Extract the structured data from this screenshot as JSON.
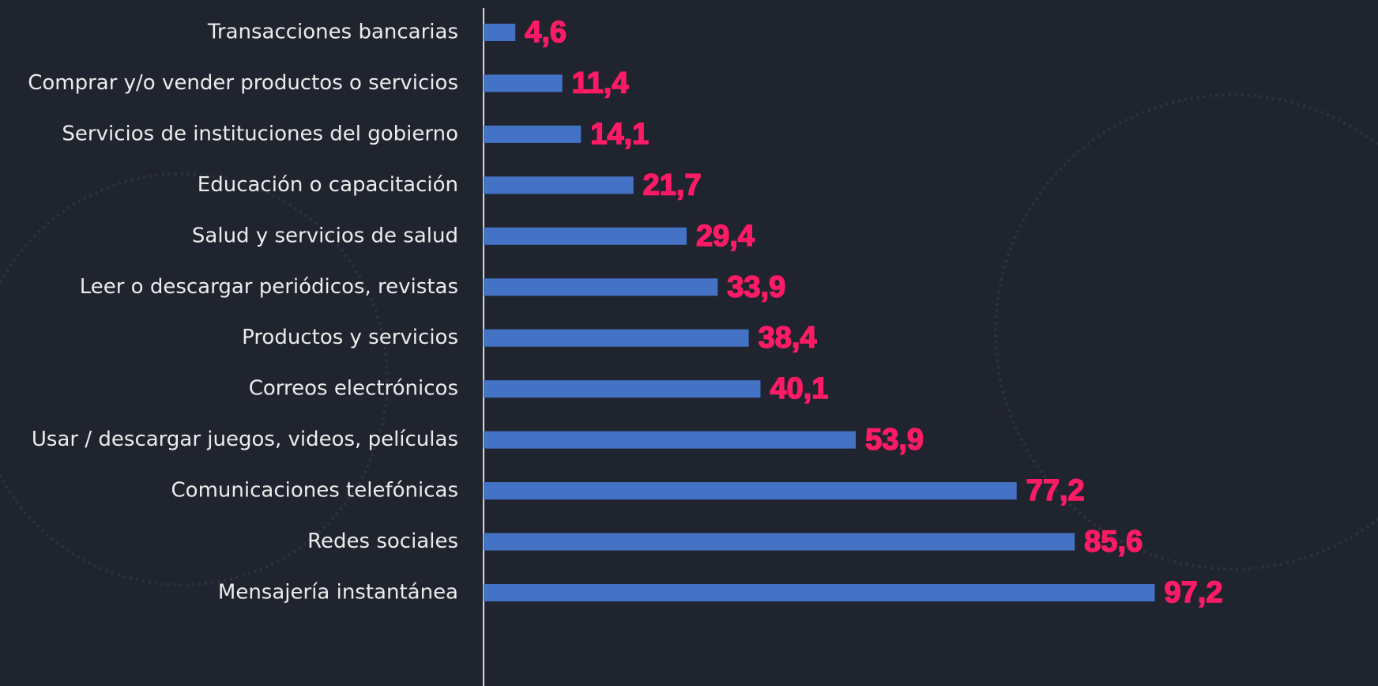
{
  "chart_data": {
    "type": "bar",
    "orientation": "horizontal",
    "categories": [
      "Transacciones bancarias",
      "Comprar y/o vender productos o servicios",
      "Servicios de instituciones del gobierno",
      "Educación o capacitación",
      "Salud y servicios de salud",
      "Leer o descargar periódicos, revistas",
      "Productos y servicios",
      "Correos electrónicos",
      "Usar / descargar juegos, videos, películas",
      "Comunicaciones telefónicas",
      "Redes sociales",
      "Mensajería instantánea"
    ],
    "values": [
      4.6,
      11.4,
      14.1,
      21.7,
      29.4,
      33.9,
      38.4,
      40.1,
      53.9,
      77.2,
      85.6,
      97.2
    ],
    "value_labels": [
      "4,6",
      "11,4",
      "14,1",
      "21,7",
      "29,4",
      "33,9",
      "38,4",
      "40,1",
      "53,9",
      "77,2",
      "85,6",
      "97,2"
    ],
    "color": "#4472c4",
    "label_color": "#ff1a66",
    "xlim": [
      0,
      100
    ]
  }
}
